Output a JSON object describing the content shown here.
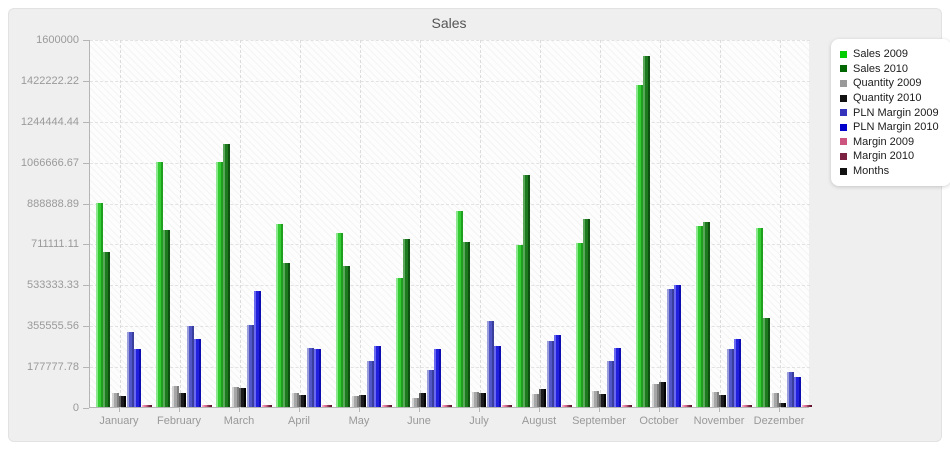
{
  "chart_data": {
    "type": "bar",
    "title": "Sales",
    "categories": [
      "January",
      "February",
      "March",
      "April",
      "May",
      "June",
      "July",
      "August",
      "September",
      "October",
      "November",
      "Dezember"
    ],
    "series": [
      {
        "name": "Sales 2009",
        "color": "#33cc33",
        "light": "#8ce88c",
        "dark": "#1f9e1f",
        "values": [
          885000,
          1065000,
          1065000,
          795000,
          755000,
          560000,
          850000,
          705000,
          715000,
          1400000,
          785000,
          780000
        ]
      },
      {
        "name": "Sales 2010",
        "color": "#1e7a1e",
        "light": "#5aa85a",
        "dark": "#0f4f0f",
        "values": [
          672000,
          770000,
          1145000,
          625000,
          613000,
          730000,
          719000,
          1010000,
          818000,
          1525000,
          805000,
          385000
        ]
      },
      {
        "name": "Quantity 2009",
        "color": "#a6a6a6",
        "light": "#d2d2d2",
        "dark": "#7f7f7f",
        "values": [
          61000,
          92000,
          87000,
          61000,
          47000,
          39000,
          65000,
          58000,
          68000,
          100000,
          67000,
          61000
        ]
      },
      {
        "name": "Quantity 2010",
        "color": "#1c1c1c",
        "light": "#5e5e5e",
        "dark": "#000000",
        "values": [
          47000,
          62000,
          84000,
          51000,
          51000,
          62000,
          61000,
          80000,
          58000,
          110000,
          52000,
          19000
        ]
      },
      {
        "name": "PLN Margin 2009",
        "color": "#5056c6",
        "light": "#9a9edd",
        "dark": "#3a3f9e",
        "values": [
          324000,
          350000,
          356000,
          257000,
          200000,
          160000,
          375000,
          285000,
          200000,
          515000,
          250000,
          152000
        ]
      },
      {
        "name": "PLN Margin 2010",
        "color": "#2121dd",
        "light": "#6a6af0",
        "dark": "#0e0eb0",
        "values": [
          254000,
          295000,
          505000,
          250000,
          266000,
          251000,
          265000,
          315000,
          255000,
          530000,
          295000,
          130000
        ]
      },
      {
        "name": "Margin 2009",
        "color": "#e87da0",
        "light": "#f3afc6",
        "dark": "#c95f84",
        "values": [
          7000,
          7000,
          7000,
          7000,
          7000,
          7000,
          7000,
          7000,
          7000,
          7000,
          7000,
          7000
        ]
      },
      {
        "name": "Margin 2010",
        "color": "#7d2040",
        "light": "#a04a66",
        "dark": "#5c1027",
        "values": [
          9000,
          9000,
          9000,
          9000,
          9000,
          9000,
          9000,
          9000,
          9000,
          9000,
          9000,
          9000
        ]
      }
    ],
    "ylim": [
      0,
      1600000
    ],
    "yticks": [
      "1600000",
      "1422222.22",
      "1244444.44",
      "1066666.67",
      "888888.89",
      "711111.11",
      "533333.33",
      "355555.56",
      "177777.78",
      "0"
    ],
    "grid": true,
    "legend_position": "right"
  },
  "legend": {
    "items": [
      {
        "label": "Sales 2009",
        "color": "#00cc00"
      },
      {
        "label": "Sales 2010",
        "color": "#006600"
      },
      {
        "label": "Quantity 2009",
        "color": "#999999"
      },
      {
        "label": "Quantity 2010",
        "color": "#111111"
      },
      {
        "label": "PLN Margin 2009",
        "color": "#3333bb"
      },
      {
        "label": "PLN Margin 2010",
        "color": "#0000cc"
      },
      {
        "label": "Margin 2009",
        "color": "#cc5580"
      },
      {
        "label": "Margin 2010",
        "color": "#7a2040"
      },
      {
        "label": "Months",
        "color": "#111111"
      }
    ]
  }
}
